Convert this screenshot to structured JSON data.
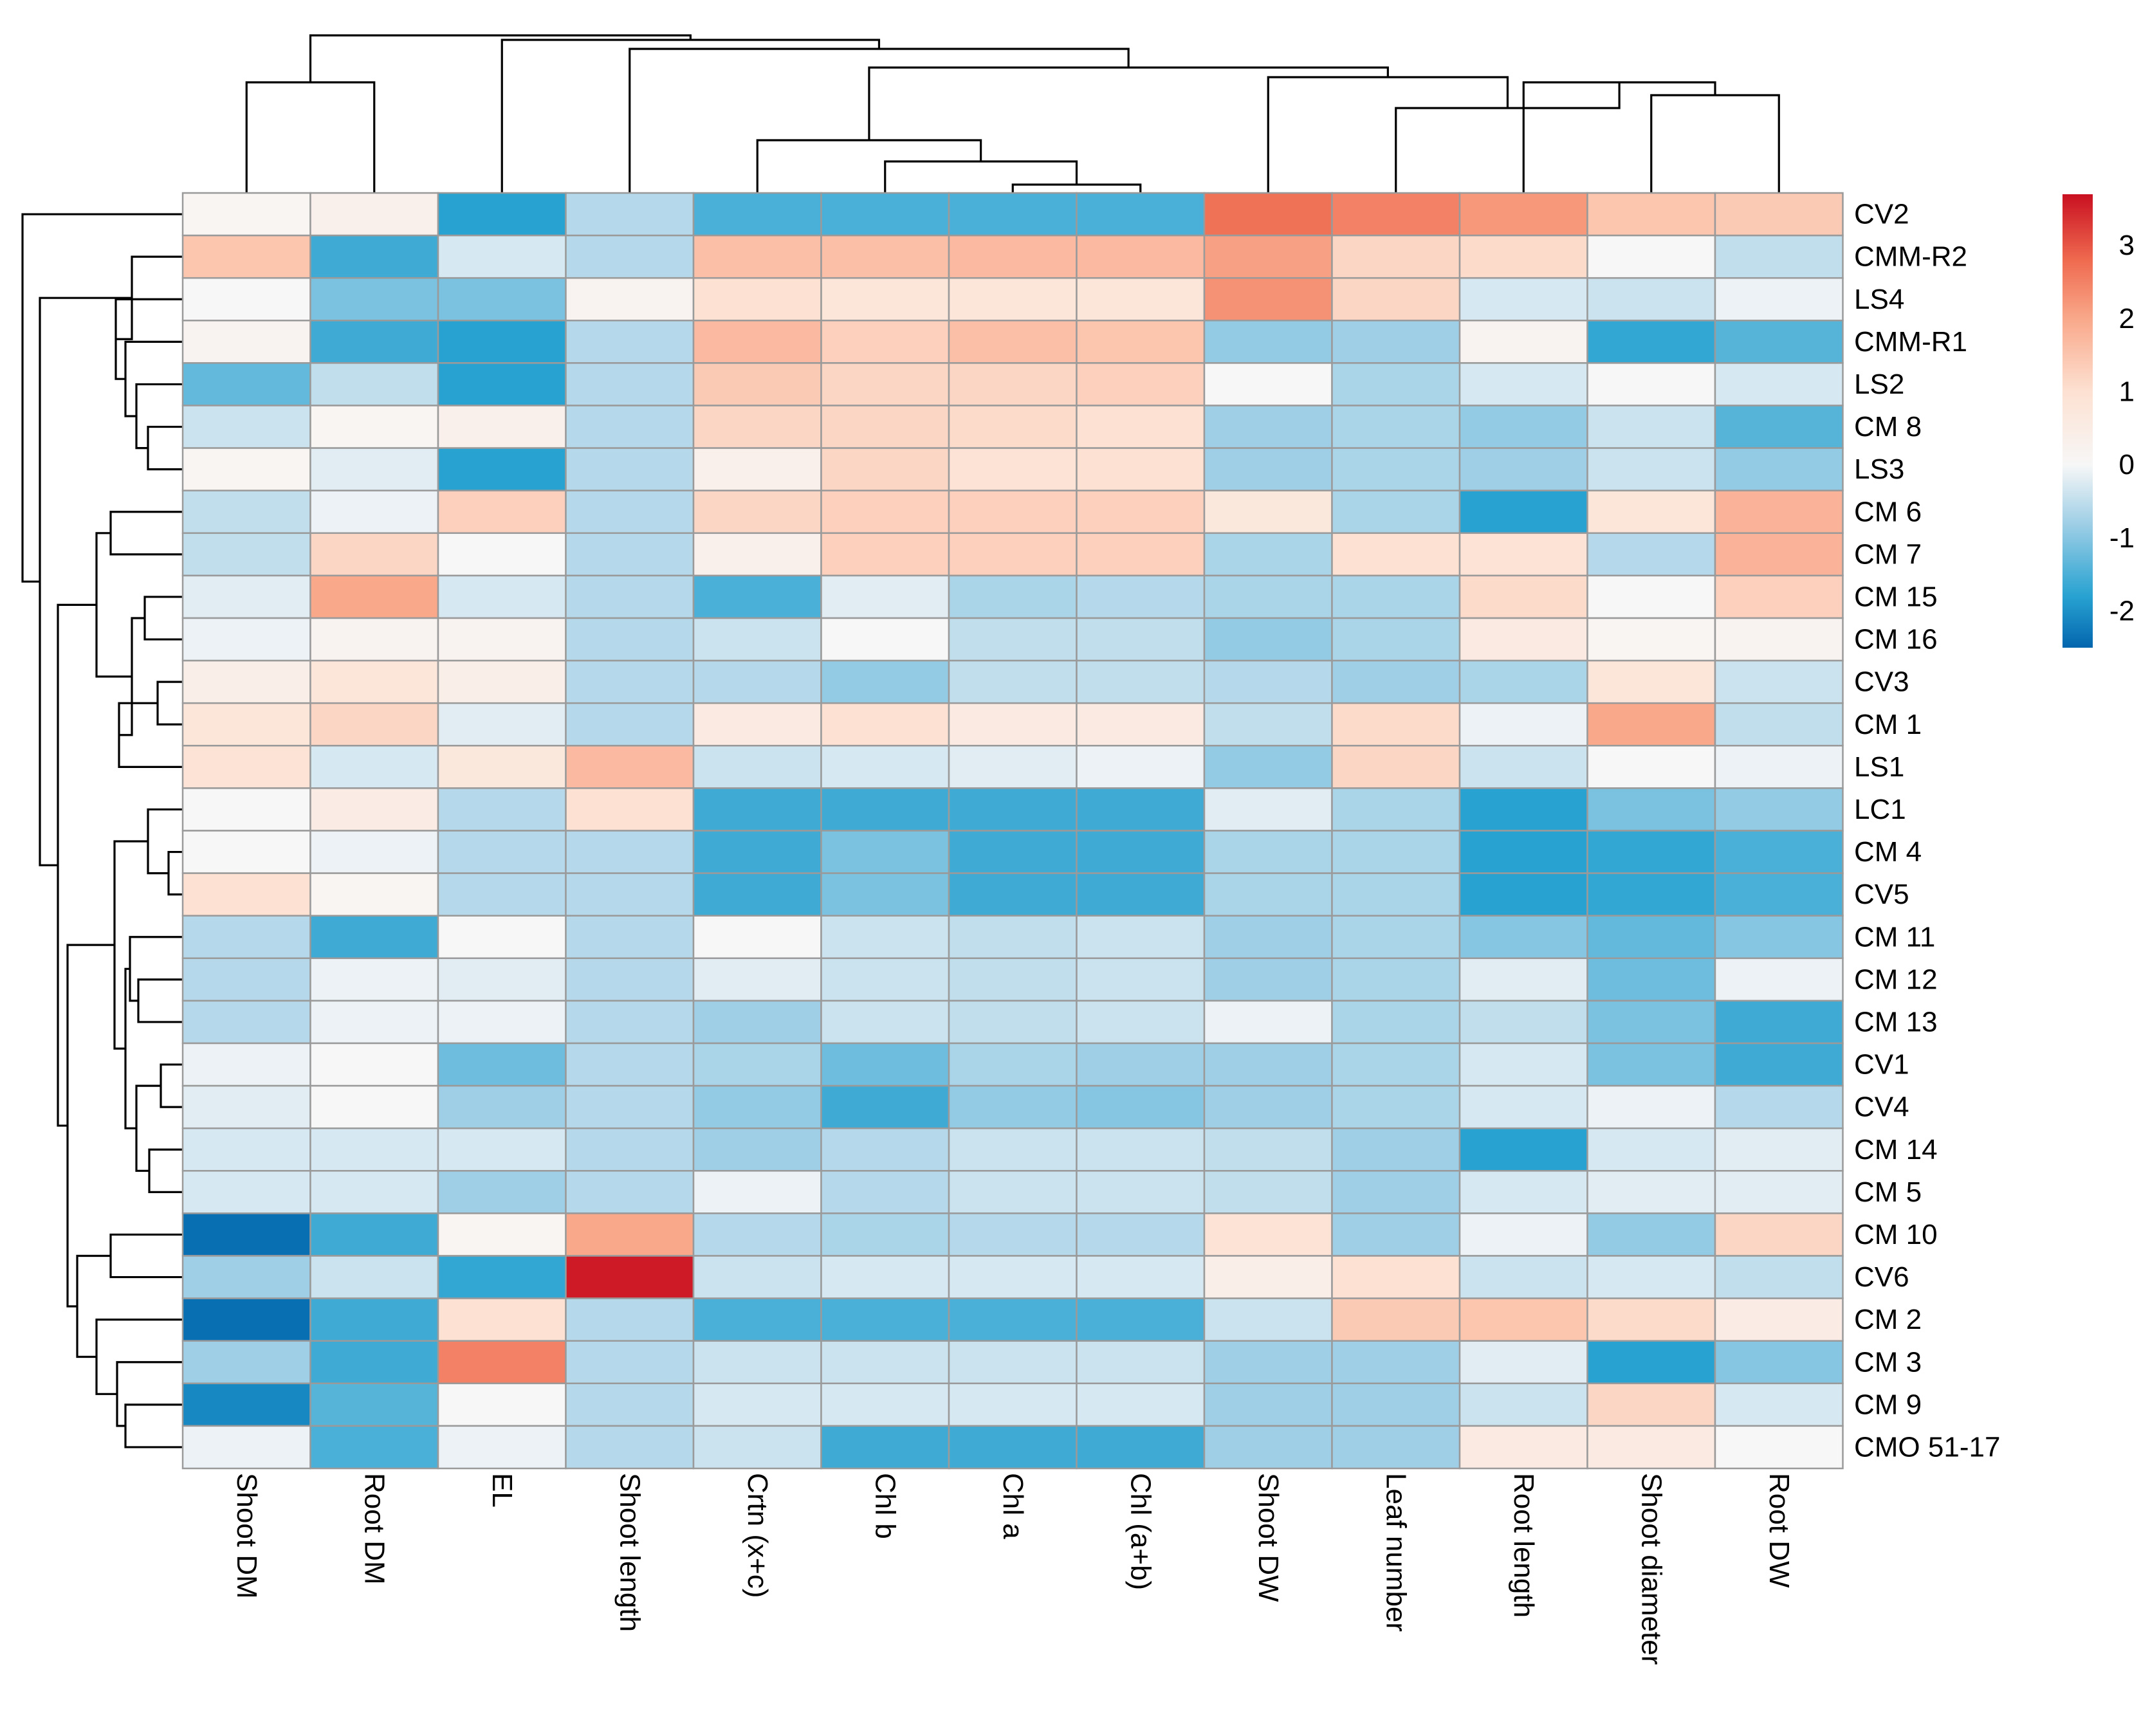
{
  "chart_data": {
    "type": "heatmap",
    "title": "",
    "columns": [
      "Shoot DM",
      "Root DM",
      "EL",
      "Shoot length",
      "Crtn (x+c)",
      "Chl b",
      "Chl a",
      "Chl (a+b)",
      "Shoot DW",
      "Leaf number",
      "Root length",
      "Shoot diameter",
      "Root DW"
    ],
    "rows": [
      "CV2",
      "CMM-R2",
      "LS4",
      "CMM-R1",
      "LS2",
      "CM 8",
      "LS3",
      "CM 6",
      "CM 7",
      "CM 15",
      "CM 16",
      "CV3",
      "CM 1",
      "LS1",
      "LC1",
      "CM 4",
      "CV5",
      "CM 11",
      "CM 12",
      "CM 13",
      "CV1",
      "CV4",
      "CM 14",
      "CM 5",
      "CM 10",
      "CV6",
      "CM 2",
      "CM 3",
      "CM 9",
      "CMO 51-17"
    ],
    "values": [
      [
        0.1,
        0.3,
        -1.8,
        -0.6,
        -1.5,
        -1.5,
        -1.5,
        -1.5,
        2.7,
        2.5,
        2.2,
        1.5,
        1.4
      ],
      [
        1.5,
        -1.6,
        -0.3,
        -0.6,
        1.6,
        1.6,
        1.7,
        1.7,
        2.1,
        1.2,
        1.1,
        0.0,
        -0.5
      ],
      [
        0.0,
        -1.1,
        -1.1,
        0.2,
        1.0,
        0.8,
        0.8,
        0.8,
        2.3,
        1.2,
        -0.3,
        -0.4,
        -0.1
      ],
      [
        0.2,
        -1.6,
        -1.8,
        -0.6,
        1.7,
        1.3,
        1.6,
        1.5,
        -0.9,
        -0.8,
        0.2,
        -1.7,
        -1.4
      ],
      [
        -1.3,
        -0.5,
        -1.8,
        -0.6,
        1.4,
        1.2,
        1.2,
        1.3,
        0.0,
        -0.7,
        -0.3,
        0.0,
        -0.3
      ],
      [
        -0.4,
        0.1,
        0.3,
        -0.6,
        1.2,
        1.2,
        1.1,
        1.0,
        -0.8,
        -0.7,
        -0.9,
        -0.4,
        -1.4
      ],
      [
        0.1,
        -0.2,
        -1.8,
        -0.6,
        0.3,
        1.2,
        0.9,
        1.0,
        -0.8,
        -0.7,
        -0.8,
        -0.4,
        -0.9
      ],
      [
        -0.5,
        -0.1,
        1.3,
        -0.6,
        1.2,
        1.3,
        1.3,
        1.3,
        0.7,
        -0.7,
        -1.8,
        0.8,
        1.8
      ],
      [
        -0.5,
        1.2,
        0.0,
        -0.6,
        0.3,
        1.3,
        1.3,
        1.3,
        -0.7,
        1.0,
        0.9,
        -0.6,
        1.8
      ],
      [
        -0.2,
        2.0,
        -0.3,
        -0.6,
        -1.5,
        -0.2,
        -0.7,
        -0.6,
        -0.7,
        -0.7,
        1.1,
        0.0,
        1.3
      ],
      [
        -0.1,
        0.2,
        0.2,
        -0.6,
        -0.4,
        0.0,
        -0.5,
        -0.5,
        -0.9,
        -0.7,
        0.6,
        0.1,
        0.2
      ],
      [
        0.4,
        0.8,
        0.4,
        -0.6,
        -0.6,
        -0.9,
        -0.5,
        -0.5,
        -0.6,
        -0.8,
        -0.7,
        0.8,
        -0.4
      ],
      [
        0.8,
        1.2,
        -0.2,
        -0.6,
        0.6,
        1.0,
        0.6,
        0.6,
        -0.5,
        1.1,
        -0.1,
        2.0,
        -0.5
      ],
      [
        0.9,
        -0.3,
        0.7,
        1.7,
        -0.4,
        -0.3,
        -0.2,
        -0.1,
        -0.9,
        1.2,
        -0.4,
        0.0,
        -0.1
      ],
      [
        0.0,
        0.5,
        -0.6,
        1.0,
        -1.6,
        -1.6,
        -1.6,
        -1.6,
        -0.2,
        -0.7,
        -1.8,
        -1.1,
        -0.9
      ],
      [
        0.0,
        -0.1,
        -0.6,
        -0.6,
        -1.6,
        -1.1,
        -1.6,
        -1.6,
        -0.7,
        -0.7,
        -1.8,
        -1.7,
        -1.5
      ],
      [
        1.0,
        0.1,
        -0.6,
        -0.6,
        -1.6,
        -1.1,
        -1.6,
        -1.6,
        -0.7,
        -0.7,
        -1.8,
        -1.7,
        -1.5
      ],
      [
        -0.6,
        -1.6,
        0.0,
        -0.6,
        0.0,
        -0.4,
        -0.5,
        -0.4,
        -0.8,
        -0.7,
        -1.0,
        -1.3,
        -1.0
      ],
      [
        -0.6,
        -0.1,
        -0.2,
        -0.6,
        -0.2,
        -0.4,
        -0.5,
        -0.4,
        -0.8,
        -0.7,
        -0.2,
        -1.2,
        -0.1
      ],
      [
        -0.6,
        -0.1,
        -0.1,
        -0.6,
        -0.8,
        -0.4,
        -0.5,
        -0.4,
        -0.1,
        -0.7,
        -0.5,
        -1.1,
        -1.6
      ],
      [
        -0.1,
        0.0,
        -1.2,
        -0.6,
        -0.7,
        -1.2,
        -0.7,
        -0.8,
        -0.8,
        -0.7,
        -0.3,
        -1.1,
        -1.6
      ],
      [
        -0.2,
        0.0,
        -0.8,
        -0.6,
        -0.9,
        -1.6,
        -0.9,
        -1.0,
        -0.8,
        -0.7,
        -0.3,
        -0.1,
        -0.6
      ],
      [
        -0.3,
        -0.3,
        -0.3,
        -0.6,
        -0.8,
        -0.6,
        -0.4,
        -0.4,
        -0.5,
        -0.8,
        -1.8,
        -0.3,
        -0.2
      ],
      [
        -0.3,
        -0.3,
        -0.8,
        -0.6,
        -0.1,
        -0.6,
        -0.4,
        -0.4,
        -0.5,
        -0.8,
        -0.3,
        -0.2,
        -0.2
      ],
      [
        -2.4,
        -1.6,
        0.1,
        2.0,
        -0.6,
        -0.7,
        -0.6,
        -0.6,
        0.9,
        -0.8,
        -0.1,
        -0.9,
        1.2
      ],
      [
        -0.8,
        -0.4,
        -1.7,
        3.6,
        -0.4,
        -0.3,
        -0.3,
        -0.3,
        0.4,
        1.0,
        -0.4,
        -0.3,
        -0.5
      ],
      [
        -2.4,
        -1.6,
        1.0,
        -0.6,
        -1.5,
        -1.5,
        -1.5,
        -1.5,
        -0.4,
        1.4,
        1.5,
        1.1,
        0.5
      ],
      [
        -0.8,
        -1.6,
        2.5,
        -0.6,
        -0.4,
        -0.4,
        -0.4,
        -0.4,
        -0.8,
        -0.8,
        -0.2,
        -1.8,
        -1.0
      ],
      [
        -2.1,
        -1.4,
        0.0,
        -0.6,
        -0.3,
        -0.3,
        -0.3,
        -0.3,
        -0.8,
        -0.8,
        -0.4,
        1.2,
        -0.3
      ],
      [
        -0.1,
        -1.5,
        -0.1,
        -0.6,
        -0.4,
        -1.6,
        -1.6,
        -1.6,
        -0.8,
        -0.8,
        0.6,
        0.6,
        0.0
      ]
    ],
    "color_scale": {
      "min": -2.5,
      "max": 3.7,
      "stops": [
        {
          "value": -2.5,
          "color": "#0466ae"
        },
        {
          "value": -1.8,
          "color": "#27a2d1"
        },
        {
          "value": -0.8,
          "color": "#9fcfe6"
        },
        {
          "value": 0.0,
          "color": "#f7f7f7"
        },
        {
          "value": 1.0,
          "color": "#fde1d2"
        },
        {
          "value": 2.0,
          "color": "#f9a88a"
        },
        {
          "value": 2.8,
          "color": "#ef6a4f"
        },
        {
          "value": 3.7,
          "color": "#c91021"
        }
      ]
    },
    "legend": {
      "position": "top-right",
      "tick_labels": [
        "3",
        "2",
        "1",
        "0",
        "-1",
        "-2"
      ],
      "tick_values": [
        3,
        2,
        1,
        0,
        -1,
        -2
      ]
    },
    "row_dendrogram": true,
    "column_dendrogram": true,
    "cell_border_color": "#9a9a9a",
    "dendrogram_color": "#000000"
  }
}
